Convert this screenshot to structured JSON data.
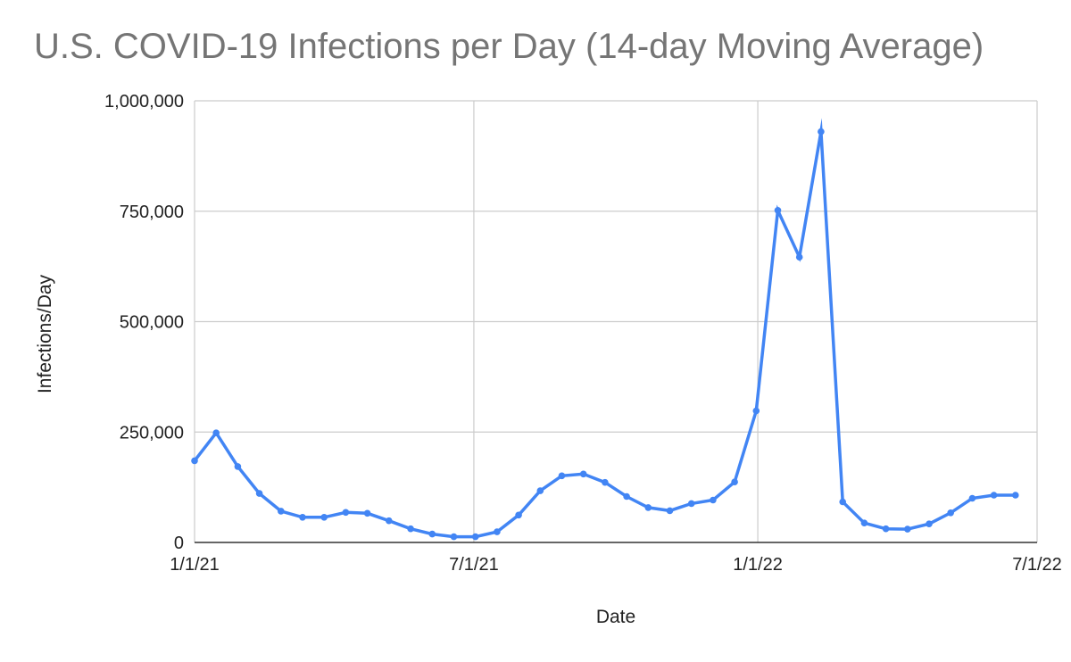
{
  "chart_data": {
    "type": "line",
    "title": "U.S. COVID-19 Infections per Day (14-day Moving Average)",
    "xlabel": "Date",
    "ylabel": "Infections/Day",
    "xlim": [
      "2021-01-01",
      "2022-07-01"
    ],
    "ylim": [
      0,
      1000000
    ],
    "x_ticks": [
      {
        "date": "2021-01-01",
        "label": "1/1/21"
      },
      {
        "date": "2021-07-01",
        "label": "7/1/21"
      },
      {
        "date": "2022-01-01",
        "label": "1/1/22"
      },
      {
        "date": "2022-07-01",
        "label": "7/1/22"
      }
    ],
    "y_ticks": [
      {
        "value": 0,
        "label": "0"
      },
      {
        "value": 250000,
        "label": "250,000"
      },
      {
        "value": 500000,
        "label": "500,000"
      },
      {
        "value": 750000,
        "label": "750,000"
      },
      {
        "value": 1000000,
        "label": "1,000,000"
      }
    ],
    "grid": true,
    "legend": "none",
    "series": [
      {
        "color": "#4285f4",
        "points": [
          {
            "x": "2021-01-01",
            "y": 185000
          },
          {
            "x": "2021-01-15",
            "y": 248000
          },
          {
            "x": "2021-01-29",
            "y": 172000
          },
          {
            "x": "2021-02-12",
            "y": 111000
          },
          {
            "x": "2021-02-26",
            "y": 71000
          },
          {
            "x": "2021-03-12",
            "y": 57000
          },
          {
            "x": "2021-03-26",
            "y": 57000
          },
          {
            "x": "2021-04-09",
            "y": 68000
          },
          {
            "x": "2021-04-23",
            "y": 66000
          },
          {
            "x": "2021-05-07",
            "y": 49000
          },
          {
            "x": "2021-05-21",
            "y": 31000
          },
          {
            "x": "2021-06-04",
            "y": 19000
          },
          {
            "x": "2021-06-18",
            "y": 13000
          },
          {
            "x": "2021-07-02",
            "y": 13000
          },
          {
            "x": "2021-07-16",
            "y": 24000
          },
          {
            "x": "2021-07-30",
            "y": 62000
          },
          {
            "x": "2021-08-13",
            "y": 117000
          },
          {
            "x": "2021-08-27",
            "y": 151000
          },
          {
            "x": "2021-09-10",
            "y": 155000
          },
          {
            "x": "2021-09-24",
            "y": 136000
          },
          {
            "x": "2021-10-08",
            "y": 104000
          },
          {
            "x": "2021-10-22",
            "y": 79000
          },
          {
            "x": "2021-11-05",
            "y": 72000
          },
          {
            "x": "2021-11-19",
            "y": 88000
          },
          {
            "x": "2021-12-03",
            "y": 96000
          },
          {
            "x": "2021-12-17",
            "y": 137000
          },
          {
            "x": "2021-12-31",
            "y": 298000
          },
          {
            "x": "2022-01-14",
            "y": 752000
          },
          {
            "x": "2022-01-28",
            "y": 646000
          },
          {
            "x": "2022-02-11",
            "y": 930000
          },
          {
            "x": "2022-02-25",
            "y": 92000
          },
          {
            "x": "2022-03-11",
            "y": 44000
          },
          {
            "x": "2022-03-25",
            "y": 31000
          },
          {
            "x": "2022-04-08",
            "y": 30000
          },
          {
            "x": "2022-04-22",
            "y": 42000
          },
          {
            "x": "2022-05-06",
            "y": 67000
          },
          {
            "x": "2022-05-20",
            "y": 100000
          },
          {
            "x": "2022-06-03",
            "y": 107000
          },
          {
            "x": "2022-06-17",
            "y": 107000
          }
        ]
      }
    ]
  }
}
